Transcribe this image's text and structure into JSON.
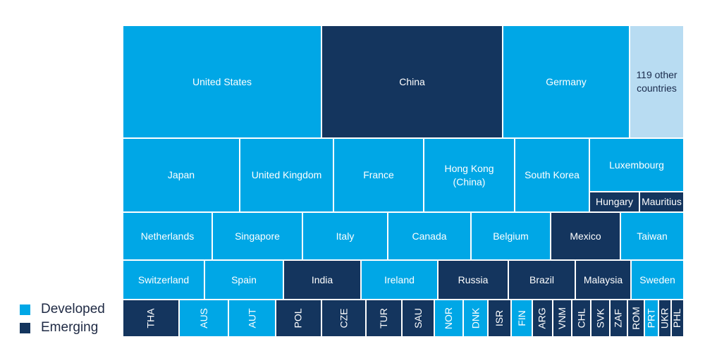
{
  "colors": {
    "developed": "#00a7e6",
    "emerging": "#14355e",
    "other": "#b8dcf2"
  },
  "legend": [
    {
      "label": "Developed",
      "category": "developed"
    },
    {
      "label": "Emerging",
      "category": "emerging"
    }
  ],
  "chart_data": {
    "type": "treemap",
    "title": "",
    "grid": false,
    "legend_position": "bottom-left",
    "cells": [
      {
        "label": "United States",
        "category": "developed"
      },
      {
        "label": "China",
        "category": "emerging"
      },
      {
        "label": "Germany",
        "category": "developed"
      },
      {
        "label": "119 other countries",
        "category": "other"
      },
      {
        "label": "Japan",
        "category": "developed"
      },
      {
        "label": "United Kingdom",
        "category": "developed"
      },
      {
        "label": "France",
        "category": "developed"
      },
      {
        "label": "Hong Kong (China)",
        "category": "developed"
      },
      {
        "label": "South Korea",
        "category": "developed"
      },
      {
        "label": "Luxembourg",
        "category": "developed"
      },
      {
        "label": "Hungary",
        "category": "emerging"
      },
      {
        "label": "Mauritius",
        "category": "emerging"
      },
      {
        "label": "Netherlands",
        "category": "developed"
      },
      {
        "label": "Singapore",
        "category": "developed"
      },
      {
        "label": "Italy",
        "category": "developed"
      },
      {
        "label": "Canada",
        "category": "developed"
      },
      {
        "label": "Belgium",
        "category": "developed"
      },
      {
        "label": "Mexico",
        "category": "emerging"
      },
      {
        "label": "Taiwan",
        "category": "developed"
      },
      {
        "label": "Switzerland",
        "category": "developed"
      },
      {
        "label": "Spain",
        "category": "developed"
      },
      {
        "label": "India",
        "category": "emerging"
      },
      {
        "label": "Ireland",
        "category": "developed"
      },
      {
        "label": "Russia",
        "category": "emerging"
      },
      {
        "label": "Brazil",
        "category": "emerging"
      },
      {
        "label": "Malaysia",
        "category": "emerging"
      },
      {
        "label": "Sweden",
        "category": "developed"
      },
      {
        "label": "THA",
        "category": "emerging"
      },
      {
        "label": "AUS",
        "category": "developed"
      },
      {
        "label": "AUT",
        "category": "developed"
      },
      {
        "label": "POL",
        "category": "emerging"
      },
      {
        "label": "CZE",
        "category": "emerging"
      },
      {
        "label": "TUR",
        "category": "emerging"
      },
      {
        "label": "SAU",
        "category": "emerging"
      },
      {
        "label": "NOR",
        "category": "developed"
      },
      {
        "label": "DNK",
        "category": "developed"
      },
      {
        "label": "ISR",
        "category": "emerging"
      },
      {
        "label": "FIN",
        "category": "developed"
      },
      {
        "label": "ARG",
        "category": "emerging"
      },
      {
        "label": "VNM",
        "category": "emerging"
      },
      {
        "label": "CHL",
        "category": "emerging"
      },
      {
        "label": "SVK",
        "category": "emerging"
      },
      {
        "label": "ZAF",
        "category": "emerging"
      },
      {
        "label": "ROM",
        "category": "emerging"
      },
      {
        "label": "PRT",
        "category": "developed"
      },
      {
        "label": "UKR",
        "category": "emerging"
      },
      {
        "label": "PHL",
        "category": "emerging"
      }
    ]
  }
}
